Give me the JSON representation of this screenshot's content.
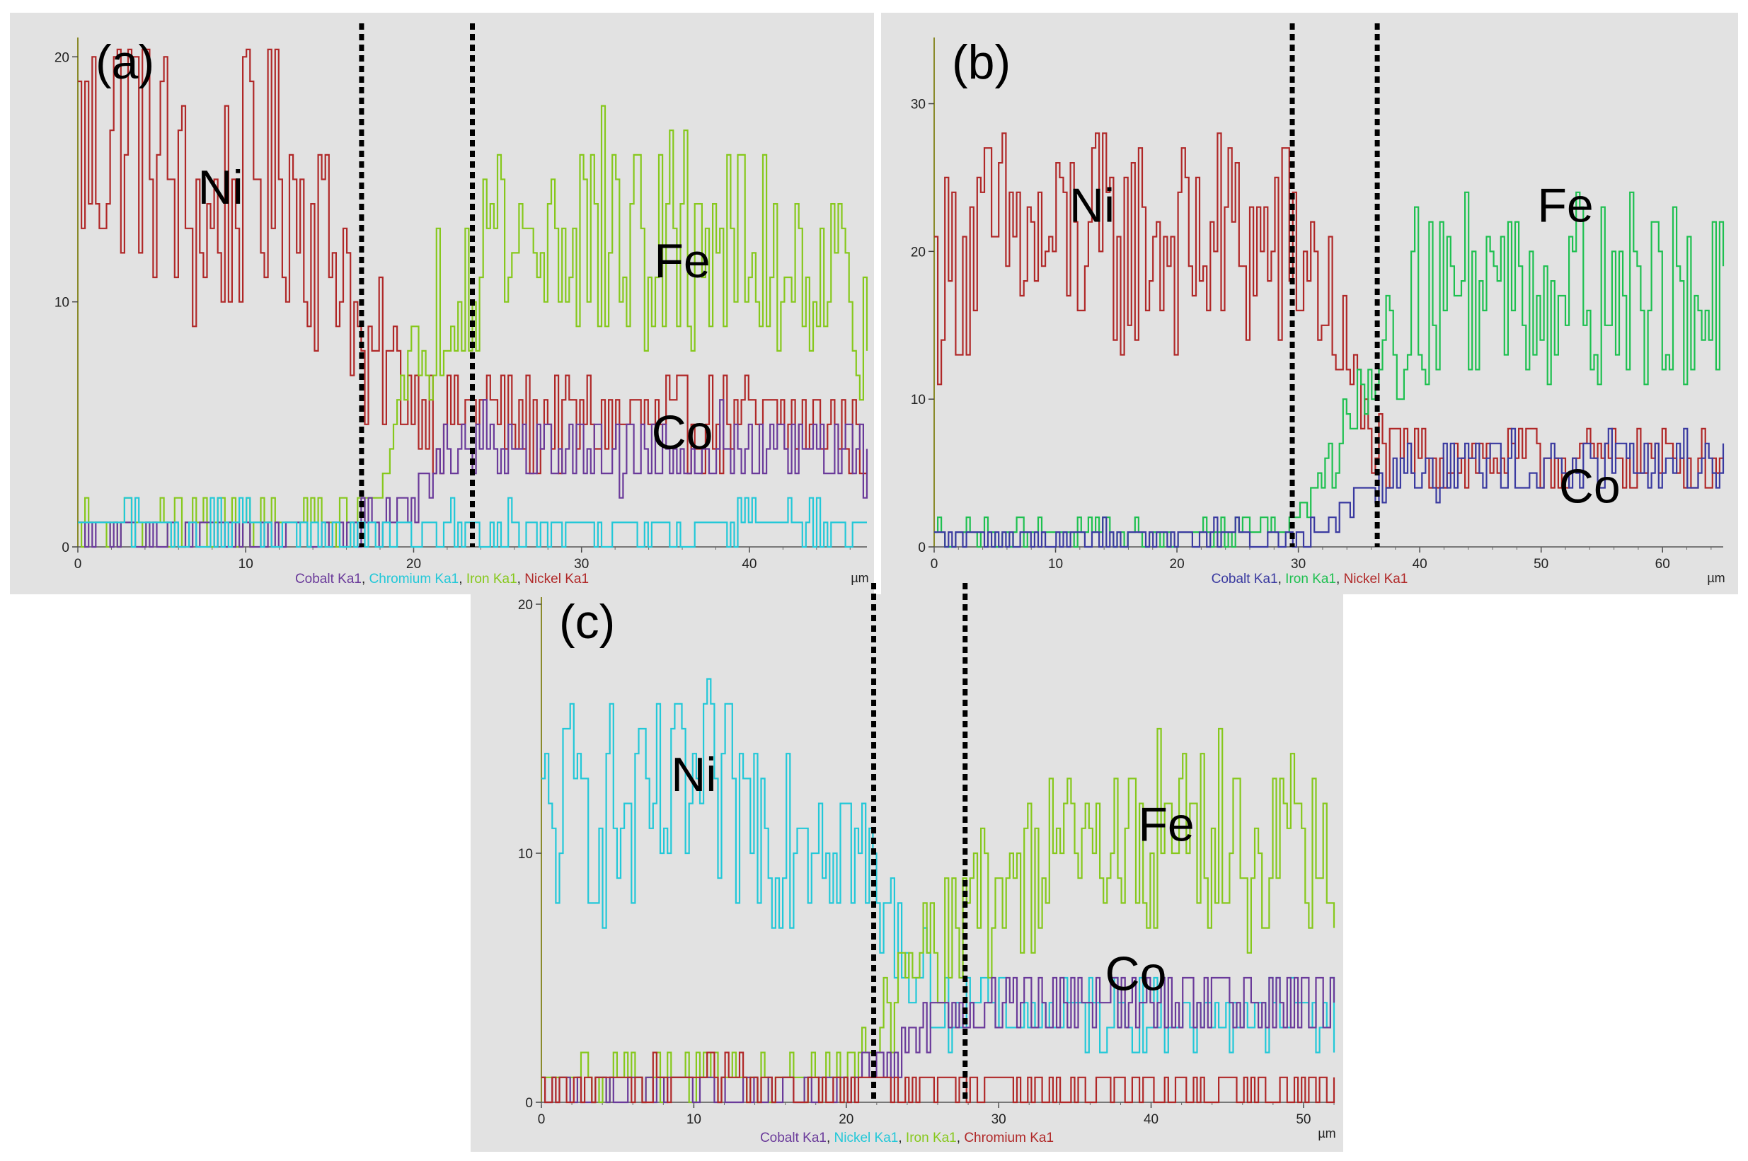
{
  "chart_data": [
    {
      "type": "line",
      "panel_label": "(a)",
      "x_unit": "µm",
      "xlim": [
        0,
        47
      ],
      "ylim": [
        0,
        20.5
      ],
      "x_ticks": [
        0,
        10,
        20,
        30,
        40
      ],
      "y_ticks": [
        0,
        10,
        20
      ],
      "boundaries": [
        16.9,
        23.5
      ],
      "legend": [
        {
          "text": "Cobalt Ka1",
          "color": "#6a3a9a"
        },
        {
          "text": "Chromium Ka1",
          "color": "#22c8d8"
        },
        {
          "text": "Iron Ka1",
          "color": "#86c81c"
        },
        {
          "text": "Nickel Ka1",
          "color": "#b02828"
        }
      ],
      "annotations": [
        {
          "text": "Ni",
          "x": 8.5,
          "y": 14
        },
        {
          "text": "Fe",
          "x": 36,
          "y": 11
        },
        {
          "text": "Co",
          "x": 36,
          "y": 4
        }
      ],
      "series": [
        {
          "name": "Nickel Ka1",
          "color": "#b02828",
          "values": [
            [
              0,
              16
            ],
            [
              2,
              17
            ],
            [
              4,
              18
            ],
            [
              6,
              14
            ],
            [
              8,
              13
            ],
            [
              10,
              15
            ],
            [
              12,
              16
            ],
            [
              14,
              13
            ],
            [
              16,
              12
            ],
            [
              17,
              6
            ],
            [
              18,
              8
            ],
            [
              20,
              6
            ],
            [
              22,
              5
            ],
            [
              24,
              6
            ],
            [
              26,
              5
            ],
            [
              28,
              5
            ],
            [
              30,
              5
            ],
            [
              32,
              5
            ],
            [
              34,
              5
            ],
            [
              36,
              5
            ],
            [
              38,
              5
            ],
            [
              40,
              5
            ],
            [
              42,
              5
            ],
            [
              44,
              5
            ],
            [
              46,
              5
            ],
            [
              47,
              4
            ]
          ]
        },
        {
          "name": "Iron Ka1",
          "color": "#86c81c",
          "values": [
            [
              0,
              1
            ],
            [
              4,
              1
            ],
            [
              8,
              1
            ],
            [
              12,
              1
            ],
            [
              16,
              1
            ],
            [
              17,
              1.5
            ],
            [
              18,
              3
            ],
            [
              19,
              5
            ],
            [
              20,
              7
            ],
            [
              21,
              9
            ],
            [
              22,
              11
            ],
            [
              23,
              12
            ],
            [
              25,
              13
            ],
            [
              27,
              12
            ],
            [
              29,
              13
            ],
            [
              31,
              13
            ],
            [
              33,
              12
            ],
            [
              35,
              12
            ],
            [
              37,
              13
            ],
            [
              39,
              12
            ],
            [
              41,
              12
            ],
            [
              43,
              12
            ],
            [
              45,
              11
            ],
            [
              47,
              10
            ]
          ]
        },
        {
          "name": "Cobalt Ka1",
          "color": "#6a3a9a",
          "values": [
            [
              0,
              0.6
            ],
            [
              4,
              0.6
            ],
            [
              8,
              0.6
            ],
            [
              12,
              0.6
            ],
            [
              16,
              0.8
            ],
            [
              18,
              1
            ],
            [
              20,
              2
            ],
            [
              22,
              4
            ],
            [
              24,
              4.5
            ],
            [
              26,
              4
            ],
            [
              28,
              4
            ],
            [
              30,
              4
            ],
            [
              32,
              4
            ],
            [
              34,
              4
            ],
            [
              36,
              4
            ],
            [
              38,
              4
            ],
            [
              40,
              4
            ],
            [
              42,
              4
            ],
            [
              44,
              4
            ],
            [
              46,
              4
            ],
            [
              47,
              4
            ]
          ]
        },
        {
          "name": "Chromium Ka1",
          "color": "#22c8d8",
          "values": [
            [
              0,
              0.8
            ],
            [
              4,
              0.8
            ],
            [
              8,
              0.8
            ],
            [
              12,
              0.8
            ],
            [
              16,
              0.8
            ],
            [
              20,
              0.8
            ],
            [
              24,
              0.8
            ],
            [
              28,
              0.8
            ],
            [
              32,
              0.8
            ],
            [
              36,
              0.8
            ],
            [
              40,
              0.8
            ],
            [
              44,
              0.8
            ],
            [
              47,
              0.8
            ]
          ]
        }
      ]
    },
    {
      "type": "line",
      "panel_label": "(b)",
      "x_unit": "µm",
      "xlim": [
        0,
        65
      ],
      "ylim": [
        0,
        34
      ],
      "x_ticks": [
        0,
        10,
        20,
        30,
        40,
        50,
        60
      ],
      "y_ticks": [
        0,
        10,
        20,
        30
      ],
      "boundaries": [
        29.5,
        36.5
      ],
      "legend": [
        {
          "text": "Cobalt Ka1",
          "color": "#3a3aa0"
        },
        {
          "text": "Iron Ka1",
          "color": "#1ec050"
        },
        {
          "text": "Nickel Ka1",
          "color": "#b02828"
        }
      ],
      "annotations": [
        {
          "text": "Ni",
          "x": 13,
          "y": 22
        },
        {
          "text": "Fe",
          "x": 52,
          "y": 22
        },
        {
          "text": "Co",
          "x": 54,
          "y": 3
        }
      ],
      "series": [
        {
          "name": "Nickel Ka1",
          "color": "#b02828",
          "values": [
            [
              0,
              18
            ],
            [
              3,
              20
            ],
            [
              6,
              21
            ],
            [
              9,
              20
            ],
            [
              12,
              21
            ],
            [
              15,
              20
            ],
            [
              18,
              21
            ],
            [
              21,
              20
            ],
            [
              24,
              21
            ],
            [
              27,
              20
            ],
            [
              29,
              20
            ],
            [
              31,
              19
            ],
            [
              33,
              15
            ],
            [
              35,
              9
            ],
            [
              37,
              6
            ],
            [
              40,
              6
            ],
            [
              43,
              6
            ],
            [
              46,
              6
            ],
            [
              49,
              6
            ],
            [
              52,
              6
            ],
            [
              55,
              6
            ],
            [
              58,
              6
            ],
            [
              61,
              6
            ],
            [
              65,
              6
            ]
          ]
        },
        {
          "name": "Iron Ka1",
          "color": "#1ec050",
          "values": [
            [
              0,
              1
            ],
            [
              5,
              1
            ],
            [
              10,
              1
            ],
            [
              15,
              1
            ],
            [
              20,
              1
            ],
            [
              25,
              1
            ],
            [
              29,
              1.5
            ],
            [
              31,
              3
            ],
            [
              33,
              7
            ],
            [
              35,
              11
            ],
            [
              37,
              15
            ],
            [
              40,
              17
            ],
            [
              43,
              18
            ],
            [
              46,
              18
            ],
            [
              49,
              18
            ],
            [
              52,
              18
            ],
            [
              55,
              18
            ],
            [
              58,
              17
            ],
            [
              61,
              17
            ],
            [
              65,
              16
            ]
          ]
        },
        {
          "name": "Cobalt Ka1",
          "color": "#3a3aa0",
          "values": [
            [
              0,
              0.8
            ],
            [
              5,
              0.8
            ],
            [
              10,
              0.8
            ],
            [
              15,
              0.8
            ],
            [
              20,
              0.8
            ],
            [
              25,
              0.8
            ],
            [
              29,
              0.8
            ],
            [
              31,
              1
            ],
            [
              33,
              2
            ],
            [
              35,
              4
            ],
            [
              37,
              5
            ],
            [
              40,
              5.5
            ],
            [
              43,
              5.5
            ],
            [
              46,
              5.5
            ],
            [
              49,
              5.5
            ],
            [
              52,
              5.5
            ],
            [
              55,
              5.5
            ],
            [
              58,
              5.5
            ],
            [
              61,
              5.5
            ],
            [
              65,
              5.5
            ]
          ]
        }
      ]
    },
    {
      "type": "line",
      "panel_label": "(c)",
      "x_unit": "µm",
      "xlim": [
        0,
        52
      ],
      "ylim": [
        0,
        20
      ],
      "x_ticks": [
        0,
        10,
        20,
        30,
        40,
        50
      ],
      "y_ticks": [
        0,
        10,
        20
      ],
      "boundaries": [
        21.8,
        27.8
      ],
      "legend": [
        {
          "text": "Cobalt Ka1",
          "color": "#6a3a9a"
        },
        {
          "text": "Nickel Ka1",
          "color": "#22c8d8"
        },
        {
          "text": "Iron Ka1",
          "color": "#86c81c"
        },
        {
          "text": "Chromium Ka1",
          "color": "#b02828"
        }
      ],
      "annotations": [
        {
          "text": "Ni",
          "x": 10,
          "y": 12.5
        },
        {
          "text": "Fe",
          "x": 41,
          "y": 10.5
        },
        {
          "text": "Co",
          "x": 39,
          "y": 4.5
        }
      ],
      "series": [
        {
          "name": "Nickel Ka1",
          "color": "#22c8d8",
          "values": [
            [
              0,
              11
            ],
            [
              3,
              12
            ],
            [
              6,
              11
            ],
            [
              9,
              12
            ],
            [
              12,
              12
            ],
            [
              15,
              11
            ],
            [
              18,
              12
            ],
            [
              20,
              11
            ],
            [
              22,
              8
            ],
            [
              24,
              6
            ],
            [
              26,
              4
            ],
            [
              28,
              4
            ],
            [
              30,
              3.5
            ],
            [
              33,
              3.5
            ],
            [
              36,
              3.5
            ],
            [
              39,
              3.5
            ],
            [
              42,
              3.5
            ],
            [
              45,
              3.5
            ],
            [
              48,
              3.5
            ],
            [
              52,
              3.5
            ]
          ]
        },
        {
          "name": "Iron Ka1",
          "color": "#86c81c",
          "values": [
            [
              0,
              1
            ],
            [
              5,
              1
            ],
            [
              10,
              1
            ],
            [
              15,
              1
            ],
            [
              20,
              1
            ],
            [
              21,
              2
            ],
            [
              23,
              4
            ],
            [
              25,
              6
            ],
            [
              27,
              7
            ],
            [
              29,
              8
            ],
            [
              32,
              9
            ],
            [
              35,
              10
            ],
            [
              38,
              10
            ],
            [
              41,
              11
            ],
            [
              44,
              11
            ],
            [
              47,
              10
            ],
            [
              50,
              10
            ],
            [
              52,
              9
            ]
          ]
        },
        {
          "name": "Cobalt Ka1",
          "color": "#6a3a9a",
          "values": [
            [
              0,
              0.5
            ],
            [
              5,
              0.5
            ],
            [
              10,
              0.5
            ],
            [
              15,
              0.5
            ],
            [
              20,
              0.8
            ],
            [
              22,
              1.5
            ],
            [
              24,
              2.5
            ],
            [
              27,
              3.5
            ],
            [
              30,
              4
            ],
            [
              33,
              4
            ],
            [
              36,
              4
            ],
            [
              39,
              4
            ],
            [
              42,
              4
            ],
            [
              45,
              4
            ],
            [
              48,
              4
            ],
            [
              52,
              4
            ]
          ]
        },
        {
          "name": "Chromium Ka1",
          "color": "#b02828",
          "values": [
            [
              0,
              0.6
            ],
            [
              5,
              0.8
            ],
            [
              10,
              1
            ],
            [
              15,
              0.8
            ],
            [
              20,
              0.6
            ],
            [
              25,
              0.6
            ],
            [
              30,
              0.6
            ],
            [
              35,
              0.6
            ],
            [
              40,
              0.6
            ],
            [
              45,
              0.6
            ],
            [
              52,
              0.6
            ]
          ]
        }
      ]
    }
  ]
}
